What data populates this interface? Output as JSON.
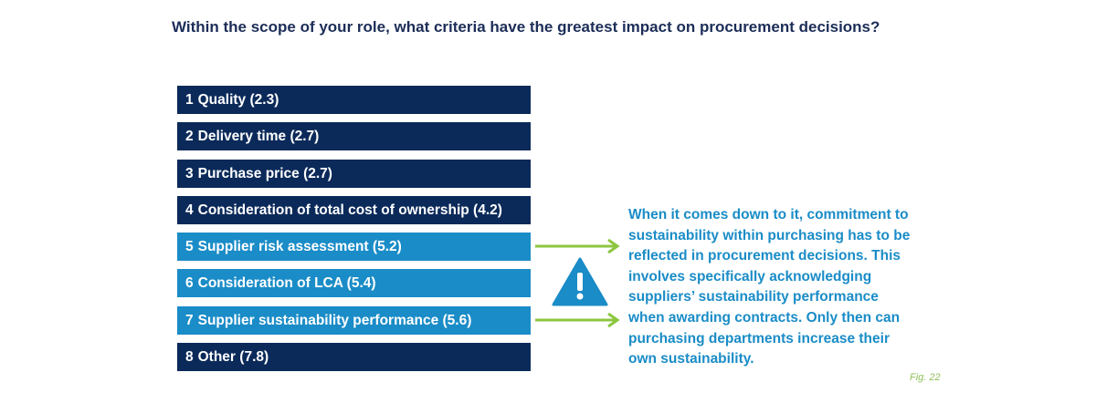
{
  "chart_data": {
    "type": "table",
    "title": "Within the scope of your role, what criteria have the greatest impact on procurement decisions?",
    "items": [
      {
        "rank": "1",
        "label": "Quality",
        "score": "(2.3)",
        "highlight": false
      },
      {
        "rank": "2",
        "label": "Delivery time",
        "score": "(2.7)",
        "highlight": false
      },
      {
        "rank": "3",
        "label": "Purchase price",
        "score": "(2.7)",
        "highlight": false
      },
      {
        "rank": "4",
        "label": "Consideration of total cost of ownership",
        "score": "(4.2)",
        "highlight": false
      },
      {
        "rank": "5",
        "label": "Supplier risk assessment",
        "score": "(5.2)",
        "highlight": true
      },
      {
        "rank": "6",
        "label": "Consideration of LCA",
        "score": "(5.4)",
        "highlight": true
      },
      {
        "rank": "7",
        "label": "Supplier sustainability performance",
        "score": "(5.6)",
        "highlight": true
      },
      {
        "rank": "8",
        "label": "Other",
        "score": "(7.8)",
        "highlight": false
      }
    ],
    "callout": "When it comes down to it, commitment to sustainability within purchasing has to be reflected in procurement decisions. This involves specifically acknowledging suppliers’ sustainability performance when awarding contracts. Only then can purchasing departments increase their own sustainability.",
    "figure_label": "Fig. 22"
  },
  "colors": {
    "dark_bar": "#0b2a5a",
    "light_bar": "#1a8cc7",
    "arrow": "#8cc63f",
    "title": "#1c2d57",
    "callout": "#1a8cc7"
  },
  "icons": {
    "warning": "warning-triangle-icon",
    "arrow": "arrow-right-icon"
  }
}
